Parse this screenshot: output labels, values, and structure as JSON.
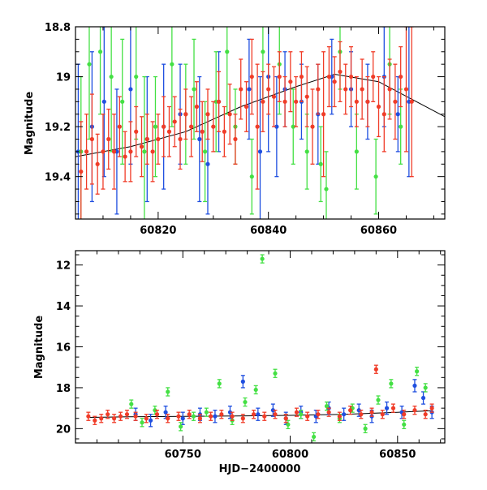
{
  "colors": {
    "blue": "#1f4fe0",
    "green": "#44e044",
    "red": "#f03c28",
    "model": "#000000",
    "axis": "#000000"
  },
  "chart_data": [
    {
      "type": "scatter",
      "title": "",
      "xlabel": "",
      "ylabel": "Magnitude",
      "xlim": [
        60805,
        60872
      ],
      "ylim": [
        19.57,
        18.8
      ],
      "y_inverted": true,
      "grid": false,
      "x_ticks": [
        60820,
        60840,
        60860
      ],
      "y_ticks": [
        18.8,
        19,
        19.2,
        19.4
      ],
      "x_tick_labels": [
        "60820",
        "60840",
        "60860"
      ],
      "y_tick_labels": [
        "18.8",
        "19",
        "19.2",
        "19.4"
      ],
      "model_curve": {
        "x": [
          60805,
          60815,
          60825,
          60835,
          60845,
          60852,
          60860,
          60866,
          60872
        ],
        "y": [
          19.32,
          19.28,
          19.22,
          19.12,
          19.04,
          18.99,
          19.02,
          19.09,
          19.16
        ]
      },
      "series": [
        {
          "color": "blue",
          "x": [
            60805.5,
            60808.0,
            60810.2,
            60812.5,
            60815.0,
            60818.0,
            60821.0,
            60824.0,
            60827.5,
            60829.0,
            60831.0,
            60836.5,
            60838.5,
            60840.0,
            60841.5,
            60843.0,
            60846.0,
            60849.0,
            60851.5,
            60855.0,
            60858.0,
            60861.0,
            60863.5,
            60865.5
          ],
          "y": [
            19.3,
            19.2,
            19.1,
            19.3,
            19.05,
            19.25,
            19.2,
            19.15,
            19.25,
            19.35,
            19.1,
            19.05,
            19.3,
            19.0,
            19.2,
            19.05,
            19.1,
            19.15,
            19.0,
            19.05,
            19.1,
            19.0,
            19.15,
            19.1
          ],
          "err": [
            0.35,
            0.3,
            0.3,
            0.25,
            0.3,
            0.25,
            0.25,
            0.2,
            0.25,
            0.2,
            0.2,
            0.2,
            0.3,
            0.3,
            0.2,
            0.15,
            0.15,
            0.2,
            0.15,
            0.15,
            0.15,
            0.2,
            0.15,
            0.3
          ]
        },
        {
          "color": "green",
          "x": [
            60806.0,
            60807.5,
            60809.5,
            60811.5,
            60813.5,
            60816.0,
            60817.5,
            60819.5,
            60822.5,
            60825.0,
            60826.5,
            60828.5,
            60830.5,
            60832.5,
            60834.0,
            60837.0,
            60839.0,
            60842.0,
            60844.5,
            60847.0,
            60849.5,
            60850.5,
            60853.0,
            60856.0,
            60859.5,
            60862.0,
            60864.0
          ],
          "y": [
            19.3,
            18.95,
            18.9,
            19.0,
            19.1,
            19.0,
            19.3,
            19.2,
            18.95,
            19.15,
            19.05,
            19.3,
            19.1,
            18.9,
            19.2,
            19.4,
            18.9,
            18.95,
            19.2,
            19.3,
            19.35,
            19.45,
            18.9,
            19.3,
            19.4,
            18.95,
            19.2
          ],
          "err": [
            0.3,
            0.3,
            0.25,
            0.3,
            0.25,
            0.25,
            0.3,
            0.2,
            0.25,
            0.2,
            0.2,
            0.2,
            0.2,
            0.25,
            0.15,
            0.15,
            0.2,
            0.2,
            0.15,
            0.15,
            0.15,
            0.15,
            0.15,
            0.15,
            0.15,
            0.2,
            0.15
          ]
        },
        {
          "color": "red",
          "x": [
            60806.0,
            60807.0,
            60808.0,
            60809.0,
            60810.0,
            60811.0,
            60812.0,
            60813.0,
            60814.0,
            60815.0,
            60816.0,
            60817.0,
            60818.0,
            60819.0,
            60820.0,
            60821.0,
            60822.0,
            60823.0,
            60824.0,
            60825.0,
            60826.0,
            60827.0,
            60828.0,
            60829.0,
            60830.0,
            60831.0,
            60832.0,
            60833.0,
            60834.0,
            60835.0,
            60836.0,
            60837.0,
            60838.0,
            60839.0,
            60840.0,
            60841.0,
            60842.0,
            60843.0,
            60844.0,
            60845.0,
            60846.0,
            60847.0,
            60848.0,
            60849.0,
            60850.0,
            60851.0,
            60852.0,
            60853.0,
            60854.0,
            60855.0,
            60856.0,
            60857.0,
            60858.0,
            60859.0,
            60860.0,
            60861.0,
            60862.0,
            60863.0,
            60864.0,
            60865.0,
            60866.0
          ],
          "y": [
            19.38,
            19.3,
            19.25,
            19.35,
            19.3,
            19.25,
            19.3,
            19.2,
            19.32,
            19.3,
            19.22,
            19.28,
            19.25,
            19.3,
            19.25,
            19.2,
            19.22,
            19.18,
            19.25,
            19.15,
            19.2,
            19.12,
            19.22,
            19.15,
            19.2,
            19.1,
            19.22,
            19.15,
            19.25,
            19.05,
            19.12,
            19.0,
            19.2,
            19.1,
            19.05,
            19.08,
            19.0,
            19.1,
            19.02,
            19.1,
            19.0,
            19.08,
            19.2,
            19.05,
            19.15,
            19.0,
            19.02,
            18.98,
            19.05,
            19.0,
            19.1,
            19.05,
            19.1,
            19.0,
            19.12,
            19.15,
            19.05,
            19.1,
            19.0,
            19.05,
            19.1
          ],
          "err": [
            0.2,
            0.15,
            0.18,
            0.12,
            0.15,
            0.12,
            0.15,
            0.12,
            0.1,
            0.12,
            0.1,
            0.12,
            0.1,
            0.12,
            0.1,
            0.12,
            0.1,
            0.1,
            0.12,
            0.1,
            0.12,
            0.1,
            0.12,
            0.1,
            0.1,
            0.12,
            0.1,
            0.12,
            0.1,
            0.12,
            0.1,
            0.15,
            0.25,
            0.12,
            0.1,
            0.12,
            0.1,
            0.1,
            0.12,
            0.1,
            0.1,
            0.12,
            0.15,
            0.1,
            0.25,
            0.12,
            0.1,
            0.12,
            0.1,
            0.12,
            0.1,
            0.12,
            0.1,
            0.1,
            0.12,
            0.15,
            0.12,
            0.15,
            0.12,
            0.25,
            0.3
          ]
        }
      ]
    },
    {
      "type": "scatter",
      "title": "",
      "xlabel": "HJD−2400000",
      "ylabel": "Magnitude",
      "xlim": [
        60700,
        60872
      ],
      "ylim": [
        20.7,
        11.3
      ],
      "y_inverted": true,
      "grid": false,
      "x_ticks": [
        60750,
        60800,
        60850
      ],
      "y_ticks": [
        12,
        14,
        16,
        18,
        20
      ],
      "x_tick_labels": [
        "60750",
        "60800",
        "60850"
      ],
      "y_tick_labels": [
        "12",
        "14",
        "16",
        "18",
        "20"
      ],
      "model_curve": {
        "x": [
          60706,
          60725,
          60750,
          60775,
          60800,
          60825,
          60850,
          60866
        ],
        "y": [
          19.45,
          19.42,
          19.4,
          19.38,
          19.35,
          19.3,
          19.2,
          19.12
        ]
      },
      "series": [
        {
          "color": "blue",
          "x": [
            60728,
            60735,
            60742,
            60750,
            60758,
            60765,
            60772,
            60778,
            60785,
            60792,
            60798,
            60805,
            60812,
            60818,
            60825,
            60832,
            60838,
            60845,
            60852,
            60858,
            60862,
            60866
          ],
          "y": [
            19.3,
            19.6,
            19.2,
            19.5,
            19.3,
            19.4,
            19.2,
            17.7,
            19.3,
            19.1,
            19.5,
            19.2,
            19.4,
            19.0,
            19.3,
            19.1,
            19.4,
            19.0,
            19.2,
            17.9,
            18.5,
            19.2
          ],
          "err": [
            0.3,
            0.3,
            0.3,
            0.3,
            0.3,
            0.3,
            0.3,
            0.3,
            0.3,
            0.3,
            0.3,
            0.3,
            0.3,
            0.3,
            0.3,
            0.3,
            0.3,
            0.3,
            0.3,
            0.3,
            0.3,
            0.3
          ]
        },
        {
          "color": "green",
          "x": [
            60726,
            60731,
            60737,
            60743,
            60749,
            60755,
            60761,
            60767,
            60773,
            60779,
            60784,
            60787,
            60793,
            60799,
            60805,
            60811,
            60817,
            60823,
            60829,
            60835,
            60841,
            60847,
            60853,
            60859,
            60863
          ],
          "y": [
            18.8,
            19.7,
            19.1,
            18.2,
            19.9,
            19.4,
            19.2,
            17.8,
            19.6,
            18.7,
            18.1,
            11.7,
            17.3,
            19.8,
            19.3,
            20.4,
            18.9,
            19.5,
            19.0,
            20.0,
            18.6,
            17.8,
            19.8,
            17.2,
            18.0
          ],
          "err": [
            0.2,
            0.2,
            0.2,
            0.2,
            0.2,
            0.2,
            0.2,
            0.2,
            0.2,
            0.2,
            0.2,
            0.2,
            0.2,
            0.2,
            0.2,
            0.2,
            0.2,
            0.2,
            0.2,
            0.2,
            0.2,
            0.2,
            0.2,
            0.2,
            0.2
          ]
        },
        {
          "color": "red",
          "x": [
            60706,
            60709,
            60712,
            60715,
            60718,
            60721,
            60724,
            60728,
            60733,
            60738,
            60743,
            60748,
            60753,
            60758,
            60763,
            60768,
            60773,
            60778,
            60783,
            60788,
            60793,
            60798,
            60803,
            60808,
            60813,
            60818,
            60823,
            60828,
            60833,
            60838,
            60840,
            60843,
            60848,
            60853,
            60858,
            60863,
            60866
          ],
          "y": [
            19.4,
            19.6,
            19.5,
            19.3,
            19.5,
            19.4,
            19.3,
            19.4,
            19.5,
            19.3,
            19.5,
            19.4,
            19.3,
            19.5,
            19.4,
            19.3,
            19.4,
            19.5,
            19.3,
            19.4,
            19.3,
            19.5,
            19.2,
            19.4,
            19.3,
            19.2,
            19.4,
            19.1,
            19.3,
            19.2,
            17.1,
            19.3,
            19.0,
            19.3,
            19.1,
            19.3,
            19.0
          ],
          "err": [
            0.2,
            0.2,
            0.2,
            0.2,
            0.2,
            0.2,
            0.2,
            0.2,
            0.2,
            0.2,
            0.2,
            0.2,
            0.2,
            0.2,
            0.2,
            0.2,
            0.2,
            0.2,
            0.2,
            0.2,
            0.2,
            0.2,
            0.2,
            0.2,
            0.2,
            0.2,
            0.2,
            0.2,
            0.2,
            0.2,
            0.2,
            0.2,
            0.2,
            0.2,
            0.2,
            0.2,
            0.2
          ]
        }
      ]
    }
  ]
}
